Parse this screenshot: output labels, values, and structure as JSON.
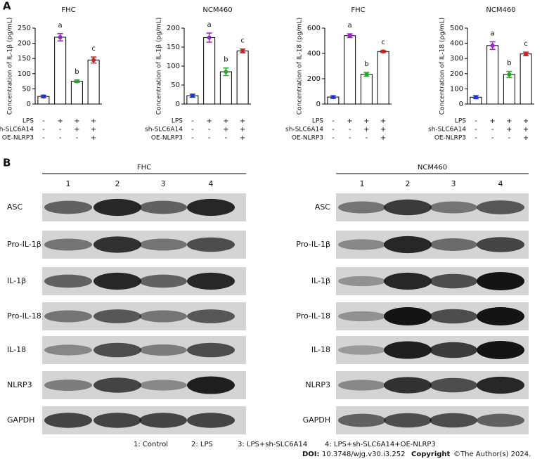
{
  "panel_labels": [
    "A",
    "B"
  ],
  "chart_data": [
    {
      "type": "bar",
      "title": "FHC",
      "ylabel": "Concentration of IL-1β (pg/mL)",
      "categories": [
        null,
        null,
        null,
        null
      ],
      "values": [
        25,
        220,
        75,
        145
      ],
      "errors": [
        4,
        12,
        4,
        10
      ],
      "significance": [
        null,
        "a",
        "b",
        "c"
      ],
      "point_colors": [
        "#2233cc",
        "#9922cc",
        "#22aa22",
        "#cc2222"
      ],
      "color": "#ffffff",
      "ylim": [
        0,
        250
      ],
      "yticks": [
        0,
        50,
        100,
        150,
        200,
        250
      ],
      "conditions": [
        {
          "label": "LPS",
          "signs": [
            "-",
            "+",
            "+",
            "+"
          ]
        },
        {
          "label": "sh-SLC6A14",
          "signs": [
            "-",
            "-",
            "+",
            "+"
          ]
        },
        {
          "label": "OE-NLRP3",
          "signs": [
            "-",
            "-",
            "-",
            "+"
          ]
        }
      ]
    },
    {
      "type": "bar",
      "title": "NCM460",
      "ylabel": "Concentration of IL-1β (pg/mL)",
      "categories": [
        null,
        null,
        null,
        null
      ],
      "values": [
        22,
        175,
        85,
        140
      ],
      "errors": [
        4,
        12,
        10,
        5
      ],
      "significance": [
        null,
        "a",
        "b",
        "c"
      ],
      "point_colors": [
        "#2233cc",
        "#9922cc",
        "#22aa22",
        "#cc2222"
      ],
      "color": "#ffffff",
      "ylim": [
        0,
        200
      ],
      "yticks": [
        0,
        50,
        100,
        150,
        200
      ],
      "conditions": [
        {
          "label": "LPS",
          "signs": [
            "-",
            "+",
            "+",
            "+"
          ]
        },
        {
          "label": "sh-SLC6A14",
          "signs": [
            "-",
            "-",
            "+",
            "+"
          ]
        },
        {
          "label": "OE-NLRP3",
          "signs": [
            "-",
            "-",
            "-",
            "+"
          ]
        }
      ]
    },
    {
      "type": "bar",
      "title": "FHC",
      "ylabel": "Concentration of IL-18 (pg/mL)",
      "categories": [
        null,
        null,
        null,
        null
      ],
      "values": [
        55,
        540,
        235,
        415
      ],
      "errors": [
        10,
        15,
        15,
        8
      ],
      "significance": [
        null,
        "a",
        "b",
        "c"
      ],
      "point_colors": [
        "#2233cc",
        "#9922cc",
        "#22aa22",
        "#cc2222"
      ],
      "color": "#ffffff",
      "ylim": [
        0,
        600
      ],
      "yticks": [
        0,
        200,
        400,
        600
      ],
      "conditions": [
        {
          "label": "LPS",
          "signs": [
            "-",
            "+",
            "+",
            "+"
          ]
        },
        {
          "label": "sh-SLC6A14",
          "signs": [
            "-",
            "-",
            "+",
            "+"
          ]
        },
        {
          "label": "OE-NLRP3",
          "signs": [
            "-",
            "-",
            "-",
            "+"
          ]
        }
      ]
    },
    {
      "type": "bar",
      "title": "NCM460",
      "ylabel": "Concentration of IL-18 (pg/mL)",
      "categories": [
        null,
        null,
        null,
        null
      ],
      "values": [
        45,
        385,
        195,
        330
      ],
      "errors": [
        10,
        25,
        20,
        12
      ],
      "significance": [
        null,
        "a",
        "b",
        "c"
      ],
      "point_colors": [
        "#2233cc",
        "#9922cc",
        "#22aa22",
        "#cc2222"
      ],
      "color": "#ffffff",
      "ylim": [
        0,
        500
      ],
      "yticks": [
        0,
        100,
        200,
        300,
        400,
        500
      ],
      "conditions": [
        {
          "label": "LPS",
          "signs": [
            "-",
            "+",
            "+",
            "+"
          ]
        },
        {
          "label": "sh-SLC6A14",
          "signs": [
            "-",
            "-",
            "+",
            "+"
          ]
        },
        {
          "label": "OE-NLRP3",
          "signs": [
            "-",
            "-",
            "-",
            "+"
          ]
        }
      ]
    }
  ],
  "blots": {
    "lane_numbers": [
      "1",
      "2",
      "3",
      "4"
    ],
    "groups": [
      {
        "title": "FHC",
        "proteins": [
          "ASC",
          "Pro-IL-1β",
          "IL-1β",
          "Pro-IL-18",
          "IL-18",
          "NLRP3",
          "GAPDH"
        ]
      },
      {
        "title": "NCM460",
        "proteins": [
          "ASC",
          "Pro-IL-1β",
          "IL-1β",
          "Pro-IL-18",
          "IL-18",
          "NLRP3",
          "GAPDH"
        ]
      }
    ]
  },
  "legend": [
    "1: Control",
    "2: LPS",
    "3: LPS+sh-SLC6A14",
    "4: LPS+sh-SLC6A14+OE-NLRP3"
  ],
  "footer": {
    "doi_label": "DOI:",
    "doi": "10.3748/wjg.v30.i3.252",
    "copyright_label": "Copyright",
    "copyright": "©The Author(s) 2024."
  }
}
